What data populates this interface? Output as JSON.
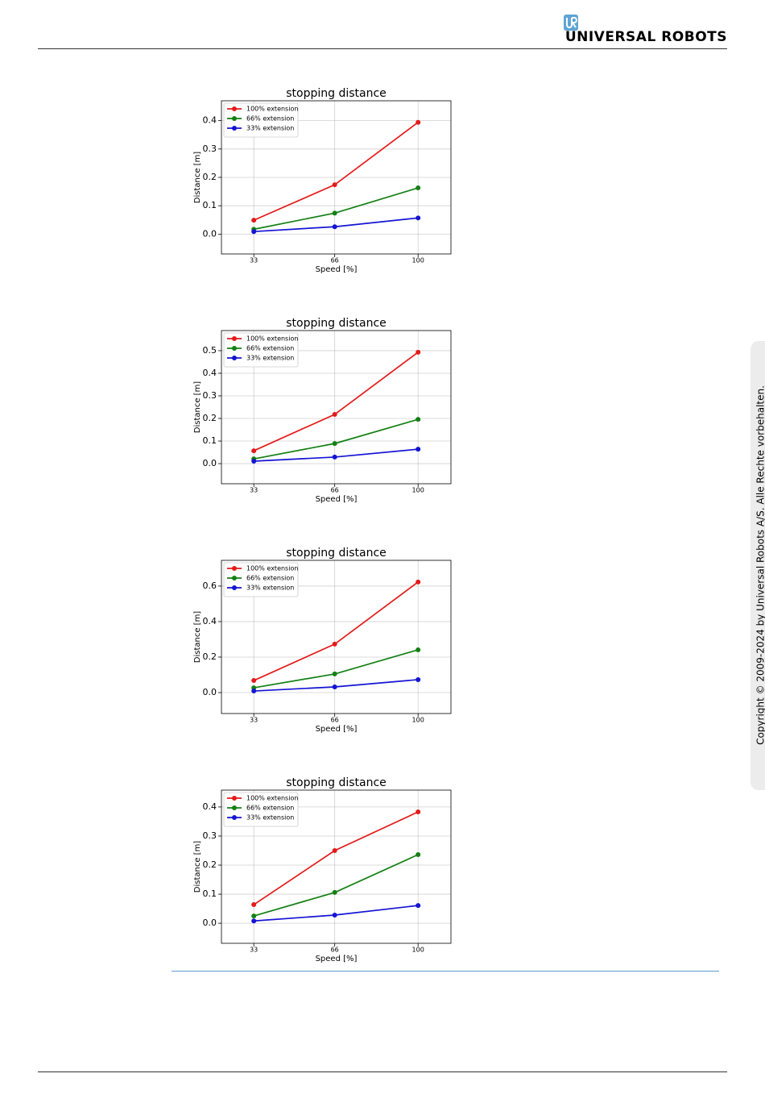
{
  "header": {
    "brand": "UNIVERSAL ROBOTS"
  },
  "copyright": "Copyright © 2009-2024 by Universal Robots A/S. Alle Rechte vorbehalten.",
  "chart_data": [
    {
      "type": "line",
      "title": "stopping distance",
      "xlabel": "Speed [%]",
      "ylabel": "Distance [m]",
      "x": [
        33,
        66,
        100
      ],
      "xticks": [
        33,
        66,
        100
      ],
      "xlim": [
        19.8,
        113.4
      ],
      "ylim": [
        -0.07,
        0.47
      ],
      "yticks": [
        {
          "value": 0,
          "label": "0.0"
        },
        0.1,
        0.2,
        0.3,
        0.4
      ],
      "grid": true,
      "legend": "upper left",
      "series": [
        {
          "name": "100% extension",
          "color": "#e41a1a",
          "values": [
            0.049,
            0.174,
            0.394
          ]
        },
        {
          "name": "66% extension",
          "color": "#138013",
          "values": [
            0.017,
            0.074,
            0.163
          ]
        },
        {
          "name": "33% extension",
          "color": "#1414d4",
          "values": [
            0.009,
            0.026,
            0.057
          ]
        }
      ]
    },
    {
      "type": "line",
      "title": "stopping distance",
      "xlabel": "Speed [%]",
      "ylabel": "Distance [m]",
      "x": [
        33,
        66,
        100
      ],
      "xticks": [
        33,
        66,
        100
      ],
      "xlim": [
        19.8,
        113.4
      ],
      "ylim": [
        -0.089,
        0.589
      ],
      "yticks": [
        {
          "value": 0,
          "label": "0.0"
        },
        0.1,
        0.2,
        0.3,
        0.4,
        0.5
      ],
      "grid": true,
      "legend": "upper left",
      "series": [
        {
          "name": "100% extension",
          "color": "#e41a1a",
          "values": [
            0.057,
            0.218,
            0.493
          ]
        },
        {
          "name": "66% extension",
          "color": "#138013",
          "values": [
            0.021,
            0.089,
            0.196
          ]
        },
        {
          "name": "33% extension",
          "color": "#1414d4",
          "values": [
            0.011,
            0.029,
            0.064
          ]
        }
      ]
    },
    {
      "type": "line",
      "title": "stopping distance",
      "xlabel": "Speed [%]",
      "ylabel": "Distance [m]",
      "x": [
        33,
        66,
        100
      ],
      "xticks": [
        33,
        66,
        100
      ],
      "xlim": [
        19.8,
        113.4
      ],
      "ylim": [
        -0.118,
        0.745
      ],
      "yticks": [
        {
          "value": 0,
          "label": "0.0"
        },
        0.2,
        0.4,
        0.6
      ],
      "grid": true,
      "legend": "upper left",
      "series": [
        {
          "name": "100% extension",
          "color": "#e41a1a",
          "values": [
            0.068,
            0.273,
            0.623
          ]
        },
        {
          "name": "66% extension",
          "color": "#138013",
          "values": [
            0.027,
            0.105,
            0.241
          ]
        },
        {
          "name": "33% extension",
          "color": "#1414d4",
          "values": [
            0.009,
            0.032,
            0.073
          ]
        }
      ]
    },
    {
      "type": "line",
      "title": "stopping distance",
      "xlabel": "Speed [%]",
      "ylabel": "Distance [m]",
      "x": [
        33,
        66,
        100
      ],
      "xticks": [
        33,
        66,
        100
      ],
      "xlim": [
        19.8,
        113.4
      ],
      "ylim": [
        -0.069,
        0.458
      ],
      "yticks": [
        {
          "value": 0,
          "label": "0.0"
        },
        0.1,
        0.2,
        0.3,
        0.4
      ],
      "grid": true,
      "legend": "upper left",
      "series": [
        {
          "name": "100% extension",
          "color": "#e41a1a",
          "values": [
            0.064,
            0.25,
            0.383
          ]
        },
        {
          "name": "66% extension",
          "color": "#138013",
          "values": [
            0.025,
            0.106,
            0.236
          ]
        },
        {
          "name": "33% extension",
          "color": "#1414d4",
          "values": [
            0.008,
            0.028,
            0.061
          ]
        }
      ]
    }
  ]
}
